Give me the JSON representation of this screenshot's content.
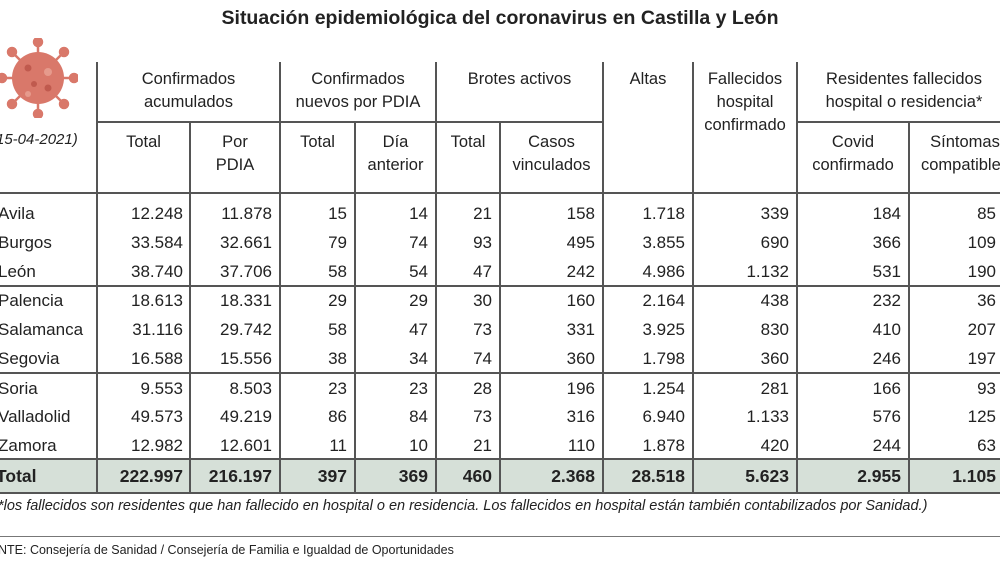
{
  "title": "Situación epidemiológica del coronavirus en Castilla y León",
  "date_label": "15-04-2021)",
  "icon": "virus-icon",
  "colors": {
    "total_band": "#d6e0d8",
    "virus": "#d9786a"
  },
  "headers": {
    "confirmados_acumulados": [
      "Confirmados",
      "acumulados"
    ],
    "confirmados_nuevos": [
      "Confirmados",
      "nuevos por PDIA"
    ],
    "brotes": "Brotes activos",
    "altas": "Altas",
    "fallecidos_hospital": [
      "Fallecidos",
      "hospital",
      "confirmado"
    ],
    "residentes": [
      "Residentes fallecidos",
      "hospital o residencia*"
    ],
    "sub": {
      "ca_total": "Total",
      "ca_pdia": [
        "Por",
        "PDIA"
      ],
      "cn_total": "Total",
      "cn_dia": [
        "Día",
        "anterior"
      ],
      "br_total": "Total",
      "br_casos": [
        "Casos",
        "vinculados"
      ],
      "res_covid": [
        "Covid",
        "confirmado"
      ],
      "res_sintomas": [
        "Síntomas",
        "compatibles"
      ]
    }
  },
  "rows": [
    {
      "provincia": "Avila",
      "values": [
        "12.248",
        "11.878",
        "15",
        "14",
        "21",
        "158",
        "1.718",
        "339",
        "184",
        "85"
      ]
    },
    {
      "provincia": "Burgos",
      "values": [
        "33.584",
        "32.661",
        "79",
        "74",
        "93",
        "495",
        "3.855",
        "690",
        "366",
        "109"
      ]
    },
    {
      "provincia": "León",
      "values": [
        "38.740",
        "37.706",
        "58",
        "54",
        "47",
        "242",
        "4.986",
        "1.132",
        "531",
        "190"
      ]
    },
    {
      "provincia": "Palencia",
      "values": [
        "18.613",
        "18.331",
        "29",
        "29",
        "30",
        "160",
        "2.164",
        "438",
        "232",
        "36"
      ]
    },
    {
      "provincia": "Salamanca",
      "values": [
        "31.116",
        "29.742",
        "58",
        "47",
        "73",
        "331",
        "3.925",
        "830",
        "410",
        "207"
      ]
    },
    {
      "provincia": "Segovia",
      "values": [
        "16.588",
        "15.556",
        "38",
        "34",
        "74",
        "360",
        "1.798",
        "360",
        "246",
        "197"
      ]
    },
    {
      "provincia": "Soria",
      "values": [
        "9.553",
        "8.503",
        "23",
        "23",
        "28",
        "196",
        "1.254",
        "281",
        "166",
        "93"
      ]
    },
    {
      "provincia": "Valladolid",
      "values": [
        "49.573",
        "49.219",
        "86",
        "84",
        "73",
        "316",
        "6.940",
        "1.133",
        "576",
        "125"
      ]
    },
    {
      "provincia": "Zamora",
      "values": [
        "12.982",
        "12.601",
        "11",
        "10",
        "21",
        "110",
        "1.878",
        "420",
        "244",
        "63"
      ]
    }
  ],
  "total": {
    "label": "Total",
    "values": [
      "222.997",
      "216.197",
      "397",
      "369",
      "460",
      "2.368",
      "28.518",
      "5.623",
      "2.955",
      "1.105"
    ]
  },
  "footnote": "*los fallecidos son residentes que han fallecido en hospital o en residencia. Los fallecidos en hospital están también contabilizados por Sanidad.)",
  "source": "NTE: Consejería de Sanidad / Consejería de Familia e Igualdad de Oportunidades"
}
